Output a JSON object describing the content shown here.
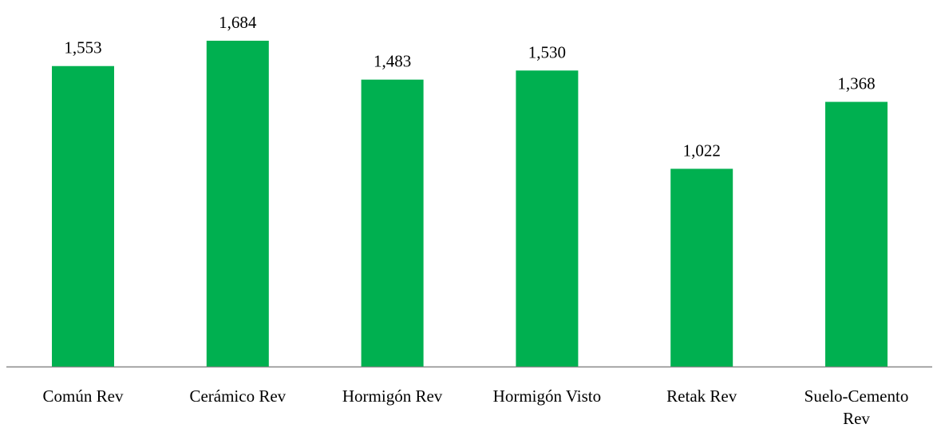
{
  "chart_data": {
    "type": "bar",
    "categories": [
      "Común Rev",
      "Cerámico Rev",
      "Hormigón Rev",
      "Hormigón Visto",
      "Retak Rev",
      "Suelo-Cemento Rev"
    ],
    "values": [
      1553,
      1684,
      1483,
      1530,
      1022,
      1368
    ],
    "value_labels": [
      "1,553",
      "1,684",
      "1,483",
      "1,530",
      "1,022",
      "1,368"
    ],
    "color": "#00b050"
  }
}
